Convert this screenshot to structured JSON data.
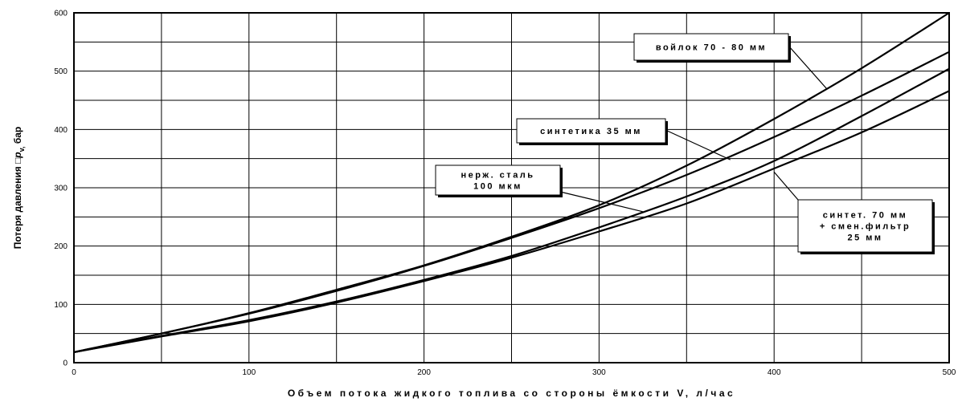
{
  "chart_data": {
    "type": "line",
    "title": "",
    "xlabel": "Объем потока жидкого топлива со стороны ёмкости V, л/час",
    "ylabel": "Потеря давления □p_v, бар",
    "ylabel_parts": {
      "before": "Потеря давления □",
      "symbol": "p",
      "subscript": "v,",
      "after": " бар"
    },
    "xlim": [
      0,
      500
    ],
    "ylim": [
      0,
      600
    ],
    "x_ticks": [
      0,
      100,
      200,
      300,
      400,
      500
    ],
    "y_ticks": [
      0,
      100,
      200,
      300,
      400,
      500,
      600
    ],
    "grid": true,
    "series": [
      {
        "name": "войлок 70 - 80 мм",
        "x": [
          0,
          50,
          100,
          150,
          200,
          250,
          300,
          350,
          400,
          450,
          500
        ],
        "values": [
          18,
          50,
          85,
          125,
          167,
          216,
          270,
          338,
          418,
          505,
          600
        ]
      },
      {
        "name": "синтетика 35 мм",
        "x": [
          0,
          50,
          100,
          150,
          200,
          250,
          300,
          350,
          400,
          450,
          500
        ],
        "values": [
          18,
          50,
          84,
          123,
          166,
          214,
          265,
          322,
          387,
          458,
          533
        ]
      },
      {
        "name": "нерж. сталь 100 мкм",
        "x": [
          0,
          50,
          100,
          150,
          200,
          250,
          300,
          350,
          400,
          450,
          500
        ],
        "values": [
          18,
          46,
          73,
          105,
          142,
          183,
          232,
          285,
          346,
          423,
          504
        ]
      },
      {
        "name": "синтет. 70 мм + смен.фильтр 25 мм",
        "x": [
          0,
          50,
          100,
          150,
          200,
          250,
          300,
          350,
          400,
          450,
          500
        ],
        "values": [
          18,
          45,
          71,
          103,
          140,
          180,
          225,
          273,
          333,
          395,
          466
        ]
      }
    ],
    "annotations": [
      {
        "lines": [
          "войлок 70 - 80 мм"
        ],
        "target": {
          "x": 430,
          "y": 470
        }
      },
      {
        "lines": [
          "синтетика 35 мм"
        ],
        "target": {
          "x": 375,
          "y": 348
        }
      },
      {
        "lines": [
          "нерж. сталь",
          "100 мкм"
        ],
        "target": {
          "x": 325,
          "y": 259
        }
      },
      {
        "lines": [
          "синтет. 70 мм",
          "+ смен.фильтр",
          "25 мм"
        ],
        "target": {
          "x": 400,
          "y": 327
        }
      }
    ]
  }
}
